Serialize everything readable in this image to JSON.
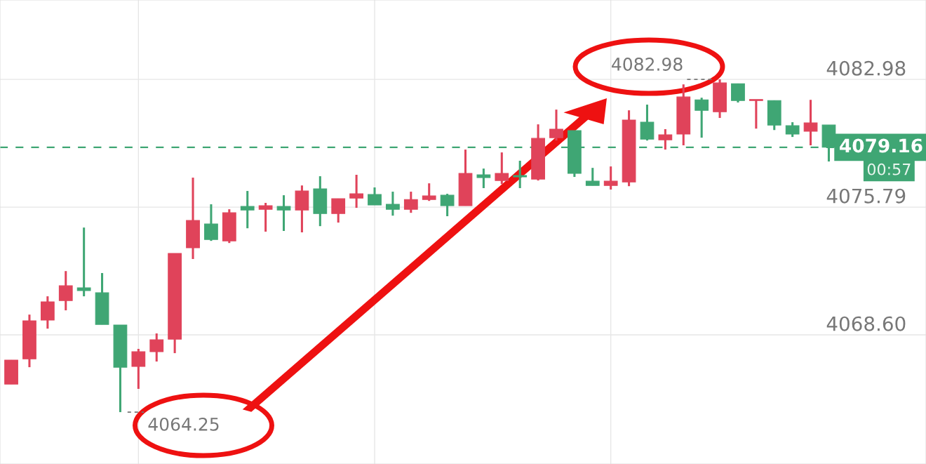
{
  "chart_data": {
    "type": "candlestick",
    "categories": [
      null,
      null,
      null,
      null,
      null,
      null,
      null,
      null,
      null,
      null,
      null,
      null,
      null,
      null,
      null,
      null,
      null,
      null,
      null,
      null,
      null,
      null,
      null,
      null,
      null,
      null,
      null,
      null,
      null,
      null,
      null,
      null,
      null,
      null,
      null,
      null,
      null,
      null,
      null,
      null,
      null,
      null,
      null,
      null,
      null,
      null
    ],
    "ohlc": [
      [
        4065.83,
        4067.18,
        4065.83,
        4067.18
      ],
      [
        4067.25,
        4069.74,
        4066.78,
        4069.39
      ],
      [
        4069.43,
        4070.77,
        4068.95,
        4070.46
      ],
      [
        4070.53,
        4072.19,
        4069.98,
        4071.36
      ],
      [
        4071.25,
        4074.64,
        4070.77,
        4071.09
      ],
      [
        4070.97,
        4072.08,
        4069.19,
        4069.19
      ],
      [
        4069.15,
        4069.15,
        4064.25,
        4066.78
      ],
      [
        4066.82,
        4067.81,
        4065.56,
        4067.65
      ],
      [
        4067.65,
        4068.68,
        4067.1,
        4068.32
      ],
      [
        4068.36,
        4073.18,
        4067.57,
        4073.18
      ],
      [
        4073.5,
        4077.45,
        4072.87,
        4075.04
      ],
      [
        4074.84,
        4075.95,
        4073.89,
        4073.97
      ],
      [
        4073.89,
        4075.67,
        4073.77,
        4075.47
      ],
      [
        4075.83,
        4076.7,
        4074.6,
        4075.63
      ],
      [
        4075.67,
        4076.03,
        4074.41,
        4075.87
      ],
      [
        4075.83,
        4076.46,
        4074.45,
        4075.63
      ],
      [
        4075.63,
        4077.01,
        4074.37,
        4076.7
      ],
      [
        4076.82,
        4077.53,
        4074.72,
        4075.43
      ],
      [
        4075.43,
        4076.26,
        4074.92,
        4076.26
      ],
      [
        4076.3,
        4077.61,
        4075.75,
        4076.54
      ],
      [
        4076.5,
        4076.9,
        4075.91,
        4075.91
      ],
      [
        4075.95,
        4076.66,
        4075.31,
        4075.67
      ],
      [
        4075.67,
        4076.66,
        4075.47,
        4076.22
      ],
      [
        4076.22,
        4077.13,
        4076.14,
        4076.42
      ],
      [
        4076.46,
        4076.54,
        4075.28,
        4075.87
      ],
      [
        4075.87,
        4079.03,
        4075.87,
        4077.69
      ],
      [
        4077.61,
        4077.96,
        4076.86,
        4077.45
      ],
      [
        4077.29,
        4078.87,
        4077.09,
        4077.69
      ],
      [
        4077.57,
        4078.4,
        4076.86,
        4077.49
      ],
      [
        4077.37,
        4080.45,
        4077.29,
        4079.66
      ],
      [
        4079.7,
        4081.28,
        4079.54,
        4080.18
      ],
      [
        4080.1,
        4080.1,
        4077.49,
        4077.69
      ],
      [
        4077.25,
        4078.0,
        4077.01,
        4077.01
      ],
      [
        4077.01,
        4078.08,
        4076.78,
        4077.25
      ],
      [
        4077.21,
        4081.24,
        4076.97,
        4080.69
      ],
      [
        4080.57,
        4081.56,
        4079.54,
        4079.62
      ],
      [
        4079.58,
        4080.18,
        4079.03,
        4079.86
      ],
      [
        4079.9,
        4082.7,
        4079.27,
        4081.99
      ],
      [
        4081.83,
        4081.95,
        4079.7,
        4081.24
      ],
      [
        4081.16,
        4082.98,
        4080.81,
        4082.78
      ],
      [
        4082.74,
        4082.74,
        4081.68,
        4081.79
      ],
      [
        4081.79,
        4081.83,
        4080.21,
        4081.83
      ],
      [
        4081.79,
        4081.79,
        4080.13,
        4080.41
      ],
      [
        4080.37,
        4080.57,
        4079.74,
        4079.9
      ],
      [
        4080.06,
        4081.83,
        4079.27,
        4080.53
      ],
      [
        4080.41,
        4080.41,
        4078.36,
        4079.16
      ]
    ],
    "colors": [
      "#e0435a",
      "#e0435a",
      "#e0435a",
      "#e0435a",
      "#3fa674",
      "#3fa674",
      "#3fa674",
      "#e0435a",
      "#e0435a",
      "#e0435a",
      "#e0435a",
      "#3fa674",
      "#e0435a",
      "#3fa674",
      "#e0435a",
      "#3fa674",
      "#e0435a",
      "#3fa674",
      "#e0435a",
      "#e0435a",
      "#3fa674",
      "#3fa674",
      "#e0435a",
      "#e0435a",
      "#3fa674",
      "#e0435a",
      "#3fa674",
      "#e0435a",
      "#3fa674",
      "#e0435a",
      "#e0435a",
      "#3fa674",
      "#3fa674",
      "#e0435a",
      "#e0435a",
      "#3fa674",
      "#e0435a",
      "#e0435a",
      "#3fa674",
      "#e0435a",
      "#3fa674",
      "#e0435a",
      "#3fa674",
      "#3fa674",
      "#e0435a",
      "#3fa674"
    ],
    "ylim": [
      4061.33,
      4087.45
    ],
    "yticks": [
      4082.98,
      4075.79,
      {
        "value": 4068.6,
        "label": "4068.60"
      }
    ],
    "grid": true,
    "ref_lines": [
      {
        "axis": "y",
        "value": 4079.16,
        "label": "4079.16",
        "color": "#3fa674",
        "line_style": "dashed"
      }
    ],
    "annotations": [
      "4082.98",
      "4064.25",
      "00:57"
    ]
  }
}
